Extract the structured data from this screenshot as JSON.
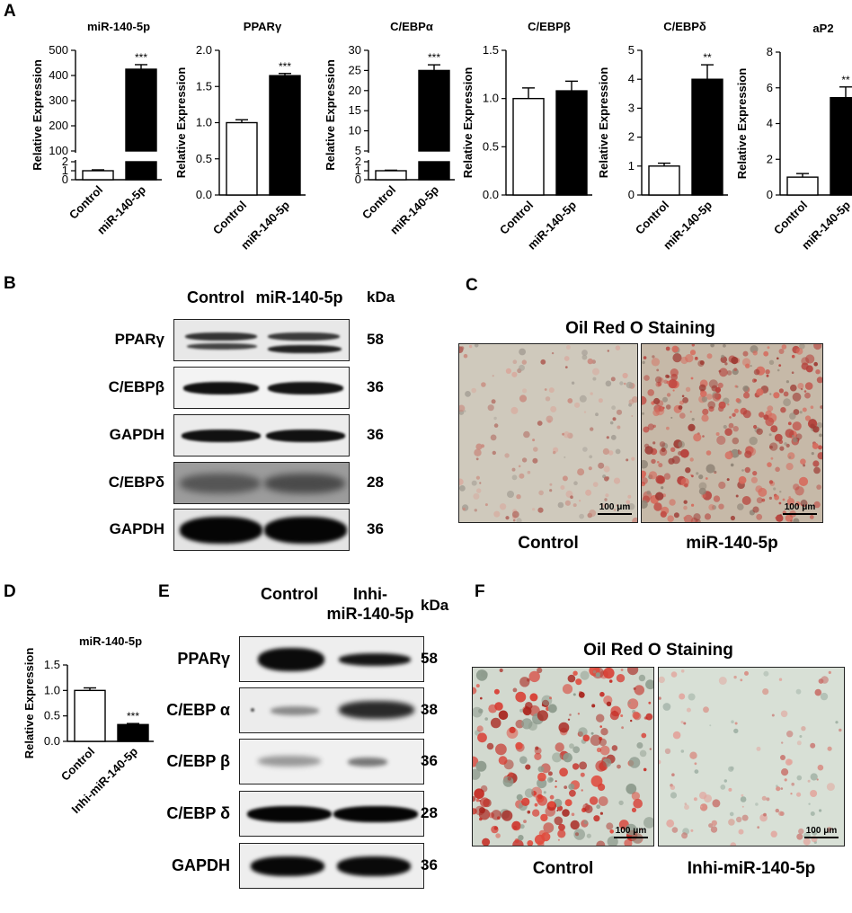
{
  "panel_labels": [
    "A",
    "B",
    "C",
    "D",
    "E",
    "F"
  ],
  "chart_data": [
    {
      "type": "bar",
      "title": "miR-140-5p",
      "ylabel": "Relative Expression",
      "categories": [
        "Control",
        "miR-140-5p"
      ],
      "values": [
        1.0,
        425
      ],
      "errors": [
        0.1,
        18
      ],
      "significance": [
        "",
        "***"
      ],
      "fills": [
        "#ffffff",
        "#000000"
      ],
      "axis_break": true,
      "lower_segment": {
        "ylim": [
          0,
          2
        ],
        "ticks": [
          "0",
          "1",
          "2"
        ]
      },
      "upper_segment": {
        "ylim": [
          100,
          500
        ],
        "ticks": [
          "100",
          "200",
          "300",
          "400",
          "500"
        ]
      }
    },
    {
      "type": "bar",
      "title": "PPARγ",
      "ylabel": "Relative Expression",
      "categories": [
        "Control",
        "miR-140-5p"
      ],
      "values": [
        1.0,
        1.65
      ],
      "errors": [
        0.04,
        0.03
      ],
      "significance": [
        "",
        "***"
      ],
      "fills": [
        "#ffffff",
        "#000000"
      ],
      "ylim": [
        0,
        2.0
      ],
      "ticks": [
        "0.0",
        "0.5",
        "1.0",
        "1.5",
        "2.0"
      ]
    },
    {
      "type": "bar",
      "title": "C/EBPα",
      "ylabel": "Relative Expression",
      "categories": [
        "Control",
        "miR-140-5p"
      ],
      "values": [
        1.0,
        25
      ],
      "errors": [
        0.06,
        1.4
      ],
      "significance": [
        "",
        "***"
      ],
      "fills": [
        "#ffffff",
        "#000000"
      ],
      "axis_break": true,
      "lower_segment": {
        "ylim": [
          0,
          2
        ],
        "ticks": [
          "0",
          "1",
          "2"
        ]
      },
      "upper_segment": {
        "ylim": [
          5,
          30
        ],
        "ticks": [
          "5",
          "10",
          "15",
          "20",
          "25",
          "30"
        ]
      }
    },
    {
      "type": "bar",
      "title": "C/EBPβ",
      "ylabel": "Relative Expression",
      "categories": [
        "Control",
        "miR-140-5p"
      ],
      "values": [
        1.0,
        1.08
      ],
      "errors": [
        0.11,
        0.1
      ],
      "significance": [
        "",
        ""
      ],
      "fills": [
        "#ffffff",
        "#000000"
      ],
      "ylim": [
        0,
        1.5
      ],
      "ticks": [
        "0.0",
        "0.5",
        "1.0",
        "1.5"
      ]
    },
    {
      "type": "bar",
      "title": "C/EBPδ",
      "ylabel": "Relative Expression",
      "categories": [
        "Control",
        "miR-140-5p"
      ],
      "values": [
        1.0,
        4.0
      ],
      "errors": [
        0.1,
        0.5
      ],
      "significance": [
        "",
        "**"
      ],
      "fills": [
        "#ffffff",
        "#000000"
      ],
      "ylim": [
        0,
        5
      ],
      "ticks": [
        "0",
        "1",
        "2",
        "3",
        "4",
        "5"
      ]
    },
    {
      "type": "bar",
      "title": "aP2",
      "ylabel": "Relative Expression",
      "categories": [
        "Control",
        "miR-140-5p"
      ],
      "values": [
        1.0,
        5.45
      ],
      "errors": [
        0.2,
        0.6
      ],
      "significance": [
        "",
        "**"
      ],
      "fills": [
        "#ffffff",
        "#000000"
      ],
      "ylim": [
        0,
        8
      ],
      "ticks": [
        "0",
        "2",
        "4",
        "6",
        "8"
      ]
    },
    {
      "type": "bar",
      "title": "miR-140-5p",
      "ylabel": "Relative Expression",
      "categories": [
        "Control",
        "Inhi-miR-140-5p"
      ],
      "values": [
        1.0,
        0.33
      ],
      "errors": [
        0.05,
        0.02
      ],
      "significance": [
        "",
        "***"
      ],
      "fills": [
        "#ffffff",
        "#000000"
      ],
      "ylim": [
        0,
        1.5
      ],
      "ticks": [
        "0.0",
        "0.5",
        "1.0",
        "1.5"
      ]
    }
  ],
  "blot_b": {
    "columns": [
      "Control",
      "miR-140-5p"
    ],
    "kda_header": "kDa",
    "rows": [
      {
        "label": "PPARγ",
        "kda": "58"
      },
      {
        "label": "C/EBPβ",
        "kda": "36"
      },
      {
        "label": "GAPDH",
        "kda": "36"
      },
      {
        "label": "C/EBPδ",
        "kda": "28"
      },
      {
        "label": "GAPDH",
        "kda": "36"
      }
    ]
  },
  "stain_c": {
    "title": "Oil Red O Staining",
    "panels": [
      {
        "label": "Control",
        "scale": "100 μm"
      },
      {
        "label": "miR-140-5p",
        "scale": "100 μm"
      }
    ]
  },
  "blot_e": {
    "columns": [
      "Control",
      "Inhi-\nmiR-140-5p"
    ],
    "kda_header": "kDa",
    "rows": [
      {
        "label": "PPARγ",
        "kda": "58"
      },
      {
        "label": "C/EBP α",
        "kda": "38"
      },
      {
        "label": "C/EBP β",
        "kda": "36"
      },
      {
        "label": "C/EBP δ",
        "kda": "28"
      },
      {
        "label": "GAPDH",
        "kda": "36"
      }
    ]
  },
  "stain_f": {
    "title": "Oil Red O Staining",
    "panels": [
      {
        "label": "Control",
        "scale": "100 μm"
      },
      {
        "label": "Inhi-miR-140-5p",
        "scale": "100 μm"
      }
    ]
  }
}
